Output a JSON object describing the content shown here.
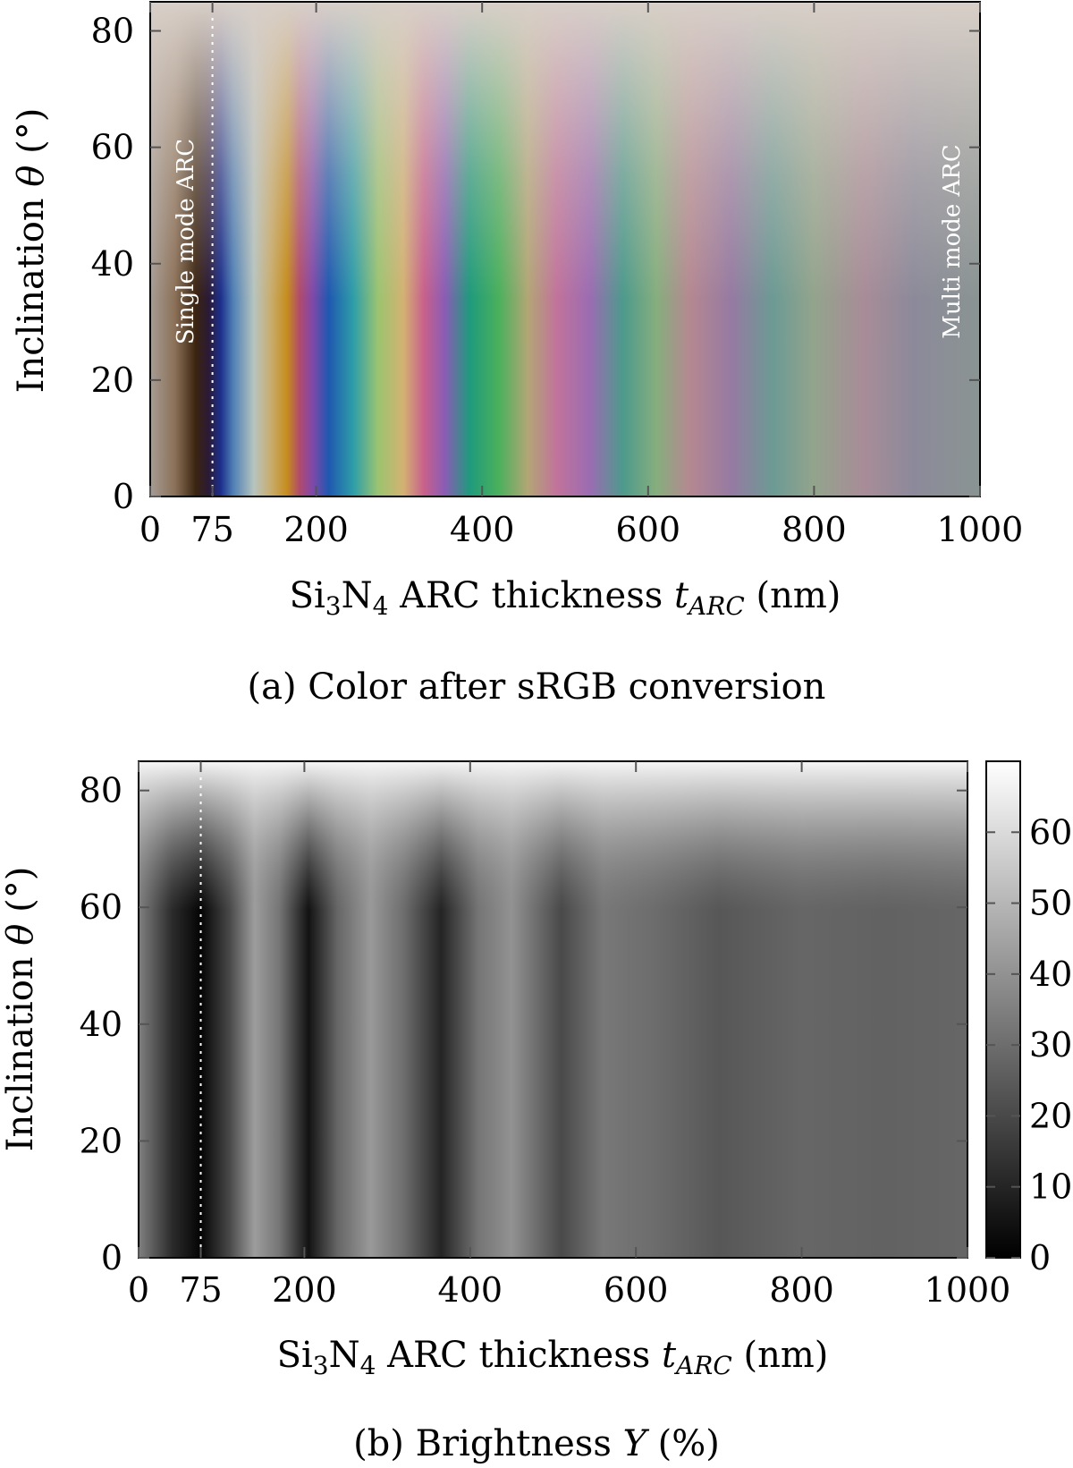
{
  "chart_data": [
    {
      "id": "a",
      "type": "heatmap",
      "value_kind": "color",
      "caption": "(a) Color after sRGB conversion",
      "xlabel_parts": {
        "pre": "Si",
        "sub1": "3",
        "mid": "N",
        "sub2": "4",
        "text": " ARC thickness ",
        "var": "t",
        "var_sub": "ARC",
        "unit": " (nm)"
      },
      "ylabel_parts": {
        "pre": "Inclination ",
        "var": "θ",
        "unit": " (°)"
      },
      "x_ticks": [
        0,
        75,
        200,
        400,
        600,
        800,
        1000
      ],
      "y_ticks": [
        0,
        20,
        40,
        60,
        80
      ],
      "xlim": [
        0,
        1000
      ],
      "ylim": [
        0,
        85
      ],
      "marker_line_x": 75,
      "annotations": [
        {
          "text": "Single mode ARC",
          "x": 40,
          "y": 55
        },
        {
          "text": "Multi mode ARC",
          "x": 960,
          "y": 55
        }
      ],
      "color_stops_at_theta0": [
        {
          "t": 0,
          "color": "#a79c94"
        },
        {
          "t": 30,
          "color": "#8b7057"
        },
        {
          "t": 55,
          "color": "#3a2410"
        },
        {
          "t": 70,
          "color": "#2b1a35"
        },
        {
          "t": 85,
          "color": "#1c2f8c"
        },
        {
          "t": 100,
          "color": "#4f80b5"
        },
        {
          "t": 125,
          "color": "#b7c4bf"
        },
        {
          "t": 145,
          "color": "#c8ad70"
        },
        {
          "t": 165,
          "color": "#c58d1c"
        },
        {
          "t": 180,
          "color": "#b04a6c"
        },
        {
          "t": 195,
          "color": "#8348a8"
        },
        {
          "t": 215,
          "color": "#1f58b0"
        },
        {
          "t": 245,
          "color": "#2e9ea8"
        },
        {
          "t": 275,
          "color": "#9cc470"
        },
        {
          "t": 305,
          "color": "#d3b272"
        },
        {
          "t": 330,
          "color": "#c8608c"
        },
        {
          "t": 355,
          "color": "#8a5cb5"
        },
        {
          "t": 385,
          "color": "#1f9a7c"
        },
        {
          "t": 420,
          "color": "#4ab05c"
        },
        {
          "t": 455,
          "color": "#b2a675"
        },
        {
          "t": 490,
          "color": "#c1739b"
        },
        {
          "t": 530,
          "color": "#9b6cb2"
        },
        {
          "t": 570,
          "color": "#4d9a8c"
        },
        {
          "t": 610,
          "color": "#86ae7e"
        },
        {
          "t": 650,
          "color": "#b58891"
        },
        {
          "t": 700,
          "color": "#967aa2"
        },
        {
          "t": 750,
          "color": "#6c9a94"
        },
        {
          "t": 800,
          "color": "#93a48c"
        },
        {
          "t": 860,
          "color": "#a88c98"
        },
        {
          "t": 920,
          "color": "#8c8a9a"
        },
        {
          "t": 1000,
          "color": "#8a9492"
        }
      ],
      "top_color": "#d8cfc8"
    },
    {
      "id": "b",
      "type": "heatmap",
      "value_kind": "scalar",
      "caption_parts": {
        "pre": "(b) Brightness ",
        "var": "Y",
        "unit": " (%)"
      },
      "xlabel_parts": {
        "pre": "Si",
        "sub1": "3",
        "mid": "N",
        "sub2": "4",
        "text": " ARC thickness ",
        "var": "t",
        "var_sub": "ARC",
        "unit": " (nm)"
      },
      "ylabel_parts": {
        "pre": "Inclination ",
        "var": "θ",
        "unit": " (°)"
      },
      "x_ticks": [
        0,
        75,
        200,
        400,
        600,
        800,
        1000
      ],
      "y_ticks": [
        0,
        20,
        40,
        60,
        80
      ],
      "xlim": [
        0,
        1000
      ],
      "ylim": [
        0,
        85
      ],
      "marker_line_x": 75,
      "colorbar": {
        "range": [
          0,
          70
        ],
        "ticks": [
          0,
          10,
          20,
          30,
          40,
          50,
          60
        ],
        "colormap": "gray"
      },
      "brightness_at_theta0": [
        {
          "t": 0,
          "Y": 35
        },
        {
          "t": 40,
          "Y": 12
        },
        {
          "t": 75,
          "Y": 1
        },
        {
          "t": 110,
          "Y": 20
        },
        {
          "t": 140,
          "Y": 43
        },
        {
          "t": 170,
          "Y": 32
        },
        {
          "t": 205,
          "Y": 5
        },
        {
          "t": 240,
          "Y": 28
        },
        {
          "t": 280,
          "Y": 42
        },
        {
          "t": 320,
          "Y": 30
        },
        {
          "t": 365,
          "Y": 10
        },
        {
          "t": 410,
          "Y": 32
        },
        {
          "t": 450,
          "Y": 40
        },
        {
          "t": 510,
          "Y": 20
        },
        {
          "t": 560,
          "Y": 33
        },
        {
          "t": 620,
          "Y": 30
        },
        {
          "t": 700,
          "Y": 24
        },
        {
          "t": 800,
          "Y": 28
        },
        {
          "t": 900,
          "Y": 27
        },
        {
          "t": 1000,
          "Y": 28
        }
      ],
      "top_brightness": 68
    }
  ]
}
